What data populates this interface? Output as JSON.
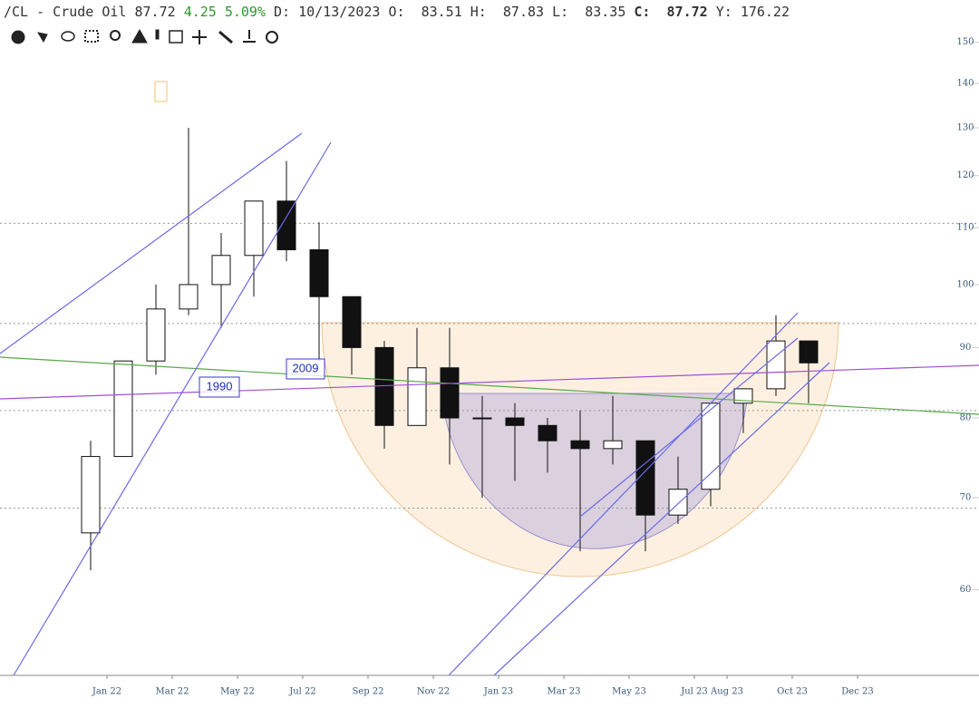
{
  "header": {
    "symbol": "/CL - Crude Oil",
    "last": 87.72,
    "change": 4.25,
    "change_pct": "5.09%",
    "date_label": "D:",
    "date": "10/13/2023",
    "open_label": "O:",
    "open": 83.51,
    "high_label": "H:",
    "high": 87.83,
    "low_label": "L:",
    "low": 83.35,
    "close_label": "C:",
    "close": 87.72,
    "year_label": "Y:",
    "year": 176.22
  },
  "chart_data": {
    "type": "candlestick",
    "log_scale": true,
    "x": [
      "2021-12",
      "2022-01",
      "2022-02",
      "2022-03",
      "2022-04",
      "2022-05",
      "2022-06",
      "2022-07",
      "2022-08",
      "2022-09",
      "2022-10",
      "2022-11",
      "2022-12",
      "2023-01",
      "2023-02",
      "2023-03",
      "2023-04",
      "2023-05",
      "2023-06",
      "2023-07",
      "2023-08",
      "2023-09",
      "2023-10"
    ],
    "open": [
      66,
      75,
      88,
      96,
      100,
      105,
      115,
      106,
      98,
      90,
      79,
      87,
      80,
      80,
      79,
      77,
      76,
      77,
      68,
      71,
      82,
      84,
      91
    ],
    "high": [
      77,
      88,
      100,
      130,
      109,
      115,
      123,
      111,
      98,
      91,
      93,
      93,
      83,
      82,
      80,
      81,
      83,
      77,
      75,
      82,
      84,
      95,
      91
    ],
    "low": [
      62,
      75,
      86,
      95,
      93,
      98,
      104,
      88,
      86,
      76,
      79,
      74,
      70,
      72,
      73,
      64,
      74,
      64,
      67,
      69,
      78,
      83,
      82
    ],
    "close": [
      75,
      88,
      96,
      100,
      105,
      115,
      106,
      98,
      90,
      79,
      87,
      80,
      80,
      79,
      77,
      76,
      77,
      68,
      71,
      82,
      84,
      91,
      87.72
    ],
    "color": "#111111",
    "ylim": [
      52,
      161
    ],
    "yticks": [
      60,
      70,
      80,
      90,
      100,
      110,
      120,
      130,
      140,
      150
    ],
    "xticks": [
      {
        "value": "2022-01",
        "label": "Jan 22"
      },
      {
        "value": "2022-03",
        "label": "Mar 22"
      },
      {
        "value": "2022-05",
        "label": "May 22"
      },
      {
        "value": "2022-07",
        "label": "Jul 22"
      },
      {
        "value": "2022-09",
        "label": "Sep 22"
      },
      {
        "value": "2022-11",
        "label": "Nov 22"
      },
      {
        "value": "2023-01",
        "label": "Jan 23"
      },
      {
        "value": "2023-03",
        "label": "Mar 23"
      },
      {
        "value": "2023-05",
        "label": "May 23"
      },
      {
        "value": "2023-07",
        "label": "Jul 23"
      },
      {
        "value": "2023-08",
        "label": "Aug 23"
      },
      {
        "value": "2023-10",
        "label": "Oct 23"
      },
      {
        "value": "2023-12",
        "label": "Dec 23"
      }
    ],
    "hlines": [
      110.8,
      93.7,
      81,
      68.8
    ],
    "annotations": [
      "1990",
      "2009"
    ]
  }
}
